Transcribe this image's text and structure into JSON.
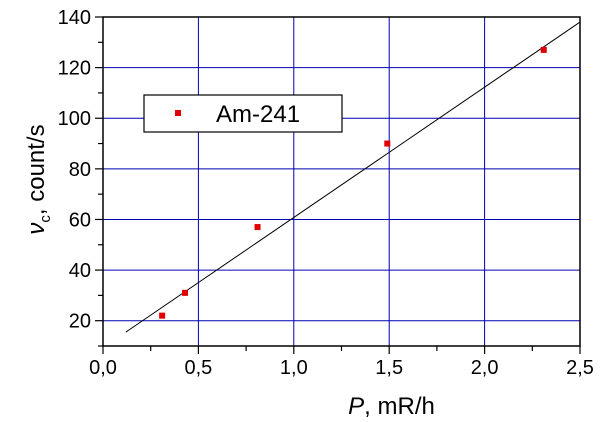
{
  "chart_data": {
    "type": "scatter",
    "xlabel_italic": "P",
    "xlabel_rest": ", mR/h",
    "ylabel_symbol": "ν",
    "ylabel_subscript": "c",
    "ylabel_rest": ", count/s",
    "xlim": [
      0.0,
      2.5
    ],
    "ylim": [
      10,
      140
    ],
    "x_ticks": [
      0.0,
      0.5,
      1.0,
      1.5,
      2.0,
      2.5
    ],
    "x_tick_labels": [
      "0,0",
      "0,5",
      "1,0",
      "1,5",
      "2,0",
      "2,5"
    ],
    "y_ticks": [
      20,
      40,
      60,
      80,
      100,
      120,
      140
    ],
    "y_tick_labels": [
      "20",
      "40",
      "60",
      "80",
      "100",
      "120",
      "140"
    ],
    "grid": true,
    "legend_position": "upper-left",
    "series": [
      {
        "name": "Am-241",
        "color": "#e00000",
        "marker": "square",
        "points": [
          {
            "x": 0.31,
            "y": 22
          },
          {
            "x": 0.43,
            "y": 31
          },
          {
            "x": 0.81,
            "y": 57
          },
          {
            "x": 1.49,
            "y": 90
          },
          {
            "x": 2.31,
            "y": 127
          }
        ]
      }
    ],
    "fit_line": {
      "x": [
        0.12,
        2.5
      ],
      "y": [
        15.5,
        138
      ]
    },
    "grid_color": "#0000b0"
  }
}
